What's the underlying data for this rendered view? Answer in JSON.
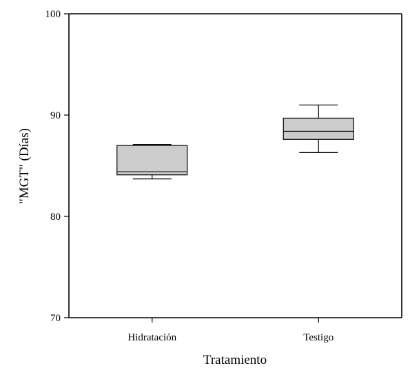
{
  "chart_data": {
    "type": "boxplot",
    "xlabel": "Tratamiento",
    "ylabel": "\"MGT\" (Días)",
    "ylim": [
      70,
      100
    ],
    "yticks": [
      70,
      80,
      90,
      100
    ],
    "categories": [
      "Hidratación",
      "Testigo"
    ],
    "boxes": [
      {
        "category": "Hidratación",
        "min": 83.7,
        "q1": 84.1,
        "median": 84.4,
        "q3": 87.0,
        "max": 87.1
      },
      {
        "category": "Testigo",
        "min": 86.3,
        "q1": 87.6,
        "median": 88.4,
        "q3": 89.7,
        "max": 91.0
      }
    ],
    "colors": {
      "box_fill": "#cccccc",
      "stroke": "#000000"
    },
    "grid": false
  }
}
